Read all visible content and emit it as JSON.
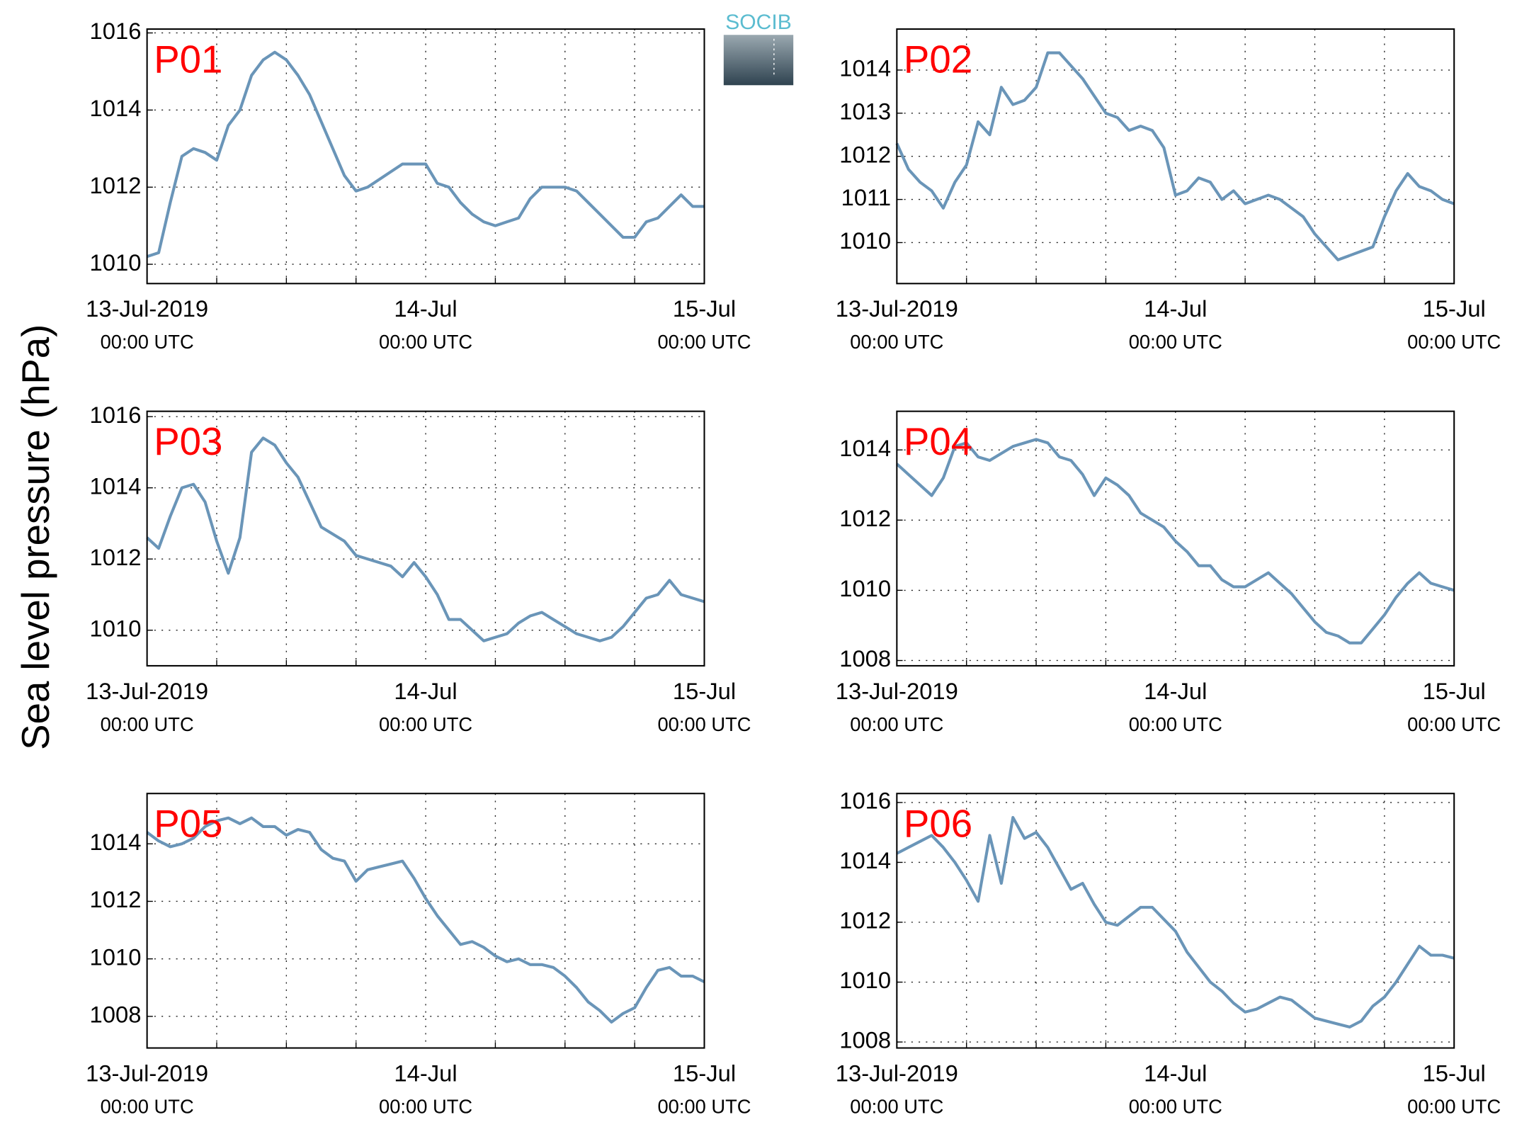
{
  "ylabel": "Sea level pressure (hPa)",
  "logo": "SOCIB",
  "chart_data": [
    {
      "type": "line",
      "title": "P01",
      "color": "#6a95b8",
      "grid": true,
      "xlim": [
        0,
        48
      ],
      "xticks": [
        {
          "value": 0,
          "label": "13-Jul-2019",
          "sublabel": "00:00 UTC"
        },
        {
          "value": 24,
          "label": "14-Jul",
          "sublabel": "00:00 UTC"
        },
        {
          "value": 48,
          "label": "15-Jul",
          "sublabel": "00:00 UTC"
        }
      ],
      "xgrid": [
        6,
        12,
        18,
        30,
        36,
        42
      ],
      "ylim": [
        1009.5,
        1016.1
      ],
      "yticks": [
        1010,
        1012,
        1014,
        1016
      ],
      "x": [
        0,
        1,
        2,
        3,
        4,
        5,
        6,
        7,
        8,
        9,
        10,
        11,
        12,
        13,
        14,
        15,
        16,
        17,
        18,
        19,
        20,
        21,
        22,
        23,
        24,
        25,
        26,
        27,
        28,
        29,
        30,
        31,
        32,
        33,
        34,
        35,
        36,
        37,
        38,
        39,
        40,
        41,
        42,
        43,
        44,
        45,
        46,
        47,
        48
      ],
      "values": [
        1010.2,
        1010.3,
        1011.6,
        1012.8,
        1013.0,
        1012.9,
        1012.7,
        1013.6,
        1014.0,
        1014.9,
        1015.3,
        1015.5,
        1015.3,
        1014.9,
        1014.4,
        1013.7,
        1013.0,
        1012.3,
        1011.9,
        1012.0,
        1012.2,
        1012.4,
        1012.6,
        1012.6,
        1012.6,
        1012.1,
        1012.0,
        1011.6,
        1011.3,
        1011.1,
        1011.0,
        1011.1,
        1011.2,
        1011.7,
        1012.0,
        1012.0,
        1012.0,
        1011.9,
        1011.6,
        1011.3,
        1011.0,
        1010.7,
        1010.7,
        1011.1,
        1011.2,
        1011.5,
        1011.8,
        1011.5,
        1011.5
      ]
    },
    {
      "type": "line",
      "title": "P02",
      "color": "#6a95b8",
      "grid": true,
      "xlim": [
        0,
        48
      ],
      "xticks": [
        {
          "value": 0,
          "label": "13-Jul-2019",
          "sublabel": "00:00 UTC"
        },
        {
          "value": 24,
          "label": "14-Jul",
          "sublabel": "00:00 UTC"
        },
        {
          "value": 48,
          "label": "15-Jul",
          "sublabel": "00:00 UTC"
        }
      ],
      "xgrid": [
        6,
        12,
        18,
        30,
        36,
        42
      ],
      "ylim": [
        1009.05,
        1014.95
      ],
      "yticks": [
        1010,
        1011,
        1012,
        1013,
        1014
      ],
      "x": [
        0,
        1,
        2,
        3,
        4,
        5,
        6,
        7,
        8,
        9,
        10,
        11,
        12,
        13,
        14,
        15,
        16,
        17,
        18,
        19,
        20,
        21,
        22,
        23,
        24,
        25,
        26,
        27,
        28,
        29,
        30,
        31,
        32,
        33,
        34,
        35,
        36,
        37,
        38,
        39,
        40,
        41,
        42,
        43,
        44,
        45,
        46,
        47,
        48
      ],
      "values": [
        1012.3,
        1011.7,
        1011.4,
        1011.2,
        1010.8,
        1011.4,
        1011.8,
        1012.8,
        1012.5,
        1013.6,
        1013.2,
        1013.3,
        1013.6,
        1014.4,
        1014.4,
        1014.1,
        1013.8,
        1013.4,
        1013.0,
        1012.9,
        1012.6,
        1012.7,
        1012.6,
        1012.2,
        1011.1,
        1011.2,
        1011.5,
        1011.4,
        1011.0,
        1011.2,
        1010.9,
        1011.0,
        1011.1,
        1011.0,
        1010.8,
        1010.6,
        1010.2,
        1009.9,
        1009.6,
        1009.7,
        1009.8,
        1009.9,
        1010.6,
        1011.2,
        1011.6,
        1011.3,
        1011.2,
        1011.0,
        1010.9
      ]
    },
    {
      "type": "line",
      "title": "P03",
      "color": "#6a95b8",
      "grid": true,
      "xlim": [
        0,
        48
      ],
      "xticks": [
        {
          "value": 0,
          "label": "13-Jul-2019",
          "sublabel": "00:00 UTC"
        },
        {
          "value": 24,
          "label": "14-Jul",
          "sublabel": "00:00 UTC"
        },
        {
          "value": 48,
          "label": "15-Jul",
          "sublabel": "00:00 UTC"
        }
      ],
      "xgrid": [
        6,
        12,
        18,
        30,
        36,
        42
      ],
      "ylim": [
        1009.0,
        1016.15
      ],
      "yticks": [
        1010,
        1012,
        1014,
        1016
      ],
      "x": [
        0,
        1,
        2,
        3,
        4,
        5,
        6,
        7,
        8,
        9,
        10,
        11,
        12,
        13,
        14,
        15,
        16,
        17,
        18,
        19,
        20,
        21,
        22,
        23,
        24,
        25,
        26,
        27,
        28,
        29,
        30,
        31,
        32,
        33,
        34,
        35,
        36,
        37,
        38,
        39,
        40,
        41,
        42,
        43,
        44,
        45,
        46,
        47,
        48
      ],
      "values": [
        1012.6,
        1012.3,
        1013.2,
        1014.0,
        1014.1,
        1013.6,
        1012.5,
        1011.6,
        1012.6,
        1015.0,
        1015.4,
        1015.2,
        1014.7,
        1014.3,
        1013.6,
        1012.9,
        1012.7,
        1012.5,
        1012.1,
        1012.0,
        1011.9,
        1011.8,
        1011.5,
        1011.9,
        1011.5,
        1011.0,
        1010.3,
        1010.3,
        1010.0,
        1009.7,
        1009.8,
        1009.9,
        1010.2,
        1010.4,
        1010.5,
        1010.3,
        1010.1,
        1009.9,
        1009.8,
        1009.7,
        1009.8,
        1010.1,
        1010.5,
        1010.9,
        1011.0,
        1011.4,
        1011.0,
        1010.9,
        1010.8
      ]
    },
    {
      "type": "line",
      "title": "P04",
      "color": "#6a95b8",
      "grid": true,
      "xlim": [
        0,
        48
      ],
      "xticks": [
        {
          "value": 0,
          "label": "13-Jul-2019",
          "sublabel": "00:00 UTC"
        },
        {
          "value": 24,
          "label": "14-Jul",
          "sublabel": "00:00 UTC"
        },
        {
          "value": 48,
          "label": "15-Jul",
          "sublabel": "00:00 UTC"
        }
      ],
      "xgrid": [
        6,
        12,
        18,
        30,
        36,
        42
      ],
      "ylim": [
        1007.85,
        1015.1
      ],
      "yticks": [
        1008,
        1010,
        1012,
        1014
      ],
      "x": [
        0,
        1,
        2,
        3,
        4,
        5,
        6,
        7,
        8,
        9,
        10,
        11,
        12,
        13,
        14,
        15,
        16,
        17,
        18,
        19,
        20,
        21,
        22,
        23,
        24,
        25,
        26,
        27,
        28,
        29,
        30,
        31,
        32,
        33,
        34,
        35,
        36,
        37,
        38,
        39,
        40,
        41,
        42,
        43,
        44,
        45,
        46,
        47,
        48
      ],
      "values": [
        1013.6,
        1013.3,
        1013.0,
        1012.7,
        1013.2,
        1014.1,
        1014.2,
        1013.8,
        1013.7,
        1013.9,
        1014.1,
        1014.2,
        1014.3,
        1014.2,
        1013.8,
        1013.7,
        1013.3,
        1012.7,
        1013.2,
        1013.0,
        1012.7,
        1012.2,
        1012.0,
        1011.8,
        1011.4,
        1011.1,
        1010.7,
        1010.7,
        1010.3,
        1010.1,
        1010.1,
        1010.3,
        1010.5,
        1010.2,
        1009.9,
        1009.5,
        1009.1,
        1008.8,
        1008.7,
        1008.5,
        1008.5,
        1008.9,
        1009.3,
        1009.8,
        1010.2,
        1010.5,
        1010.2,
        1010.1,
        1010.0
      ]
    },
    {
      "type": "line",
      "title": "P05",
      "color": "#6a95b8",
      "grid": true,
      "xlim": [
        0,
        48
      ],
      "xticks": [
        {
          "value": 0,
          "label": "13-Jul-2019",
          "sublabel": "00:00 UTC"
        },
        {
          "value": 24,
          "label": "14-Jul",
          "sublabel": "00:00 UTC"
        },
        {
          "value": 48,
          "label": "15-Jul",
          "sublabel": "00:00 UTC"
        }
      ],
      "xgrid": [
        6,
        12,
        18,
        30,
        36,
        42
      ],
      "ylim": [
        1006.9,
        1015.75
      ],
      "yticks": [
        1008,
        1010,
        1012,
        1014
      ],
      "x": [
        0,
        1,
        2,
        3,
        4,
        5,
        6,
        7,
        8,
        9,
        10,
        11,
        12,
        13,
        14,
        15,
        16,
        17,
        18,
        19,
        20,
        21,
        22,
        23,
        24,
        25,
        26,
        27,
        28,
        29,
        30,
        31,
        32,
        33,
        34,
        35,
        36,
        37,
        38,
        39,
        40,
        41,
        42,
        43,
        44,
        45,
        46,
        47,
        48
      ],
      "values": [
        1014.4,
        1014.1,
        1013.9,
        1014.0,
        1014.2,
        1014.6,
        1014.8,
        1014.9,
        1014.7,
        1014.9,
        1014.6,
        1014.6,
        1014.3,
        1014.5,
        1014.4,
        1013.8,
        1013.5,
        1013.4,
        1012.7,
        1013.1,
        1013.2,
        1013.3,
        1013.4,
        1012.8,
        1012.1,
        1011.5,
        1011.0,
        1010.5,
        1010.6,
        1010.4,
        1010.1,
        1009.9,
        1010.0,
        1009.8,
        1009.8,
        1009.7,
        1009.4,
        1009.0,
        1008.5,
        1008.2,
        1007.8,
        1008.1,
        1008.3,
        1009.0,
        1009.6,
        1009.7,
        1009.4,
        1009.4,
        1009.2
      ]
    },
    {
      "type": "line",
      "title": "P06",
      "color": "#6a95b8",
      "grid": true,
      "xlim": [
        0,
        48
      ],
      "xticks": [
        {
          "value": 0,
          "label": "13-Jul-2019",
          "sublabel": "00:00 UTC"
        },
        {
          "value": 24,
          "label": "14-Jul",
          "sublabel": "00:00 UTC"
        },
        {
          "value": 48,
          "label": "15-Jul",
          "sublabel": "00:00 UTC"
        }
      ],
      "xgrid": [
        6,
        12,
        18,
        30,
        36,
        42
      ],
      "ylim": [
        1007.8,
        1016.3
      ],
      "yticks": [
        1008,
        1010,
        1012,
        1014,
        1016
      ],
      "x": [
        0,
        1,
        2,
        3,
        4,
        5,
        6,
        7,
        8,
        9,
        10,
        11,
        12,
        13,
        14,
        15,
        16,
        17,
        18,
        19,
        20,
        21,
        22,
        23,
        24,
        25,
        26,
        27,
        28,
        29,
        30,
        31,
        32,
        33,
        34,
        35,
        36,
        37,
        38,
        39,
        40,
        41,
        42,
        43,
        44,
        45,
        46,
        47,
        48
      ],
      "values": [
        1014.3,
        1014.5,
        1014.7,
        1014.9,
        1014.5,
        1014.0,
        1013.4,
        1012.7,
        1014.9,
        1013.3,
        1015.5,
        1014.8,
        1015.0,
        1014.5,
        1013.8,
        1013.1,
        1013.3,
        1012.6,
        1012.0,
        1011.9,
        1012.2,
        1012.5,
        1012.5,
        1012.1,
        1011.7,
        1011.0,
        1010.5,
        1010.0,
        1009.7,
        1009.3,
        1009.0,
        1009.1,
        1009.3,
        1009.5,
        1009.4,
        1009.1,
        1008.8,
        1008.7,
        1008.6,
        1008.5,
        1008.7,
        1009.2,
        1009.5,
        1010.0,
        1010.6,
        1011.2,
        1010.9,
        1010.9,
        1010.8
      ]
    }
  ]
}
